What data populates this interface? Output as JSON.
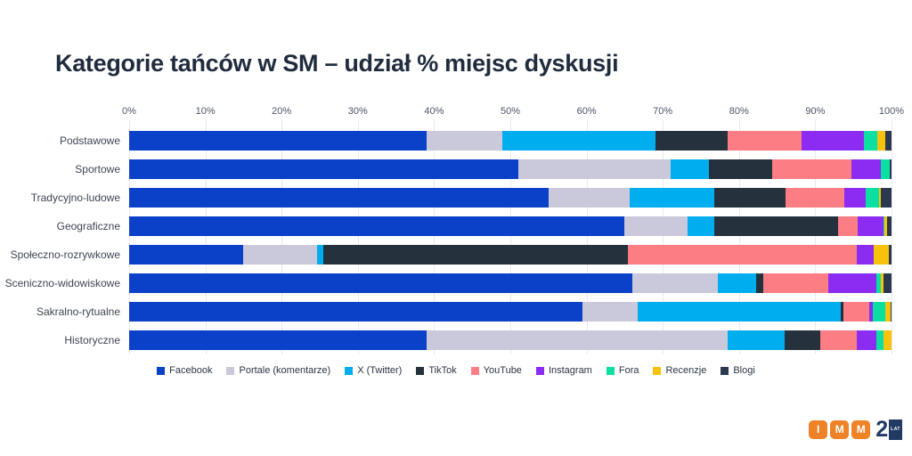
{
  "title": "Kategorie tańców w SM – udział % miejsc dyskusji",
  "colors": {
    "background": "#ffffff",
    "title": "#202c3e",
    "axis_label": "#4c5565",
    "category_label": "#3d4554",
    "grid": "#e9e9f0",
    "legend_text": "#2b3444"
  },
  "chart_data": {
    "type": "bar",
    "orientation": "horizontal",
    "stacked": true,
    "unit": "%",
    "grid": true,
    "legend_position": "bottom",
    "xlim": [
      0,
      100
    ],
    "x_ticks": [
      "0%",
      "10%",
      "20%",
      "30%",
      "40%",
      "50%",
      "60%",
      "70%",
      "80%",
      "90%",
      "100%"
    ],
    "categories": [
      "Podstawowe",
      "Sportowe",
      "Tradycyjno-ludowe",
      "Geograficzne",
      "Społeczno-rozrywkowe",
      "Sceniczno-widowiskowe",
      "Sakralno-rytualne",
      "Historyczne"
    ],
    "series": [
      {
        "name": "Facebook",
        "color": "#0a41c8",
        "values": [
          39.0,
          51.0,
          55.0,
          65.0,
          15.0,
          66.0,
          59.5,
          39.0
        ]
      },
      {
        "name": "Portale (komentarze)",
        "color": "#c9c9db",
        "values": [
          10.0,
          20.0,
          10.7,
          8.2,
          9.6,
          11.2,
          7.2,
          39.5
        ]
      },
      {
        "name": "X (Twitter)",
        "color": "#00aeef",
        "values": [
          20.0,
          5.0,
          11.1,
          3.5,
          0.9,
          5.0,
          26.6,
          7.5
        ]
      },
      {
        "name": "TikTok",
        "color": "#25323e",
        "values": [
          9.5,
          8.4,
          9.3,
          16.3,
          39.9,
          1.0,
          0.4,
          4.6
        ]
      },
      {
        "name": "YouTube",
        "color": "#fd7d84",
        "values": [
          9.7,
          10.3,
          7.7,
          2.6,
          30.0,
          8.5,
          3.4,
          4.9
        ]
      },
      {
        "name": "Instagram",
        "color": "#8c2bf1",
        "values": [
          8.2,
          3.9,
          2.8,
          3.3,
          2.3,
          6.3,
          0.5,
          2.5
        ]
      },
      {
        "name": "Fora",
        "color": "#0be0a2",
        "values": [
          1.7,
          1.2,
          1.8,
          0.2,
          0.0,
          0.6,
          1.6,
          0.9
        ]
      },
      {
        "name": "Recenzje",
        "color": "#f6c30c",
        "values": [
          1.1,
          0.0,
          0.2,
          0.3,
          1.9,
          0.3,
          0.7,
          1.1
        ]
      },
      {
        "name": "Blogi",
        "color": "#2c3850",
        "values": [
          0.8,
          0.2,
          1.4,
          0.6,
          0.4,
          1.1,
          0.1,
          0.0
        ]
      }
    ]
  },
  "logo": {
    "tiles": [
      "I",
      "M",
      "M"
    ],
    "tile_color": "#ee8227",
    "years": "25",
    "years_label": "LAT",
    "navy": "#213a63"
  }
}
